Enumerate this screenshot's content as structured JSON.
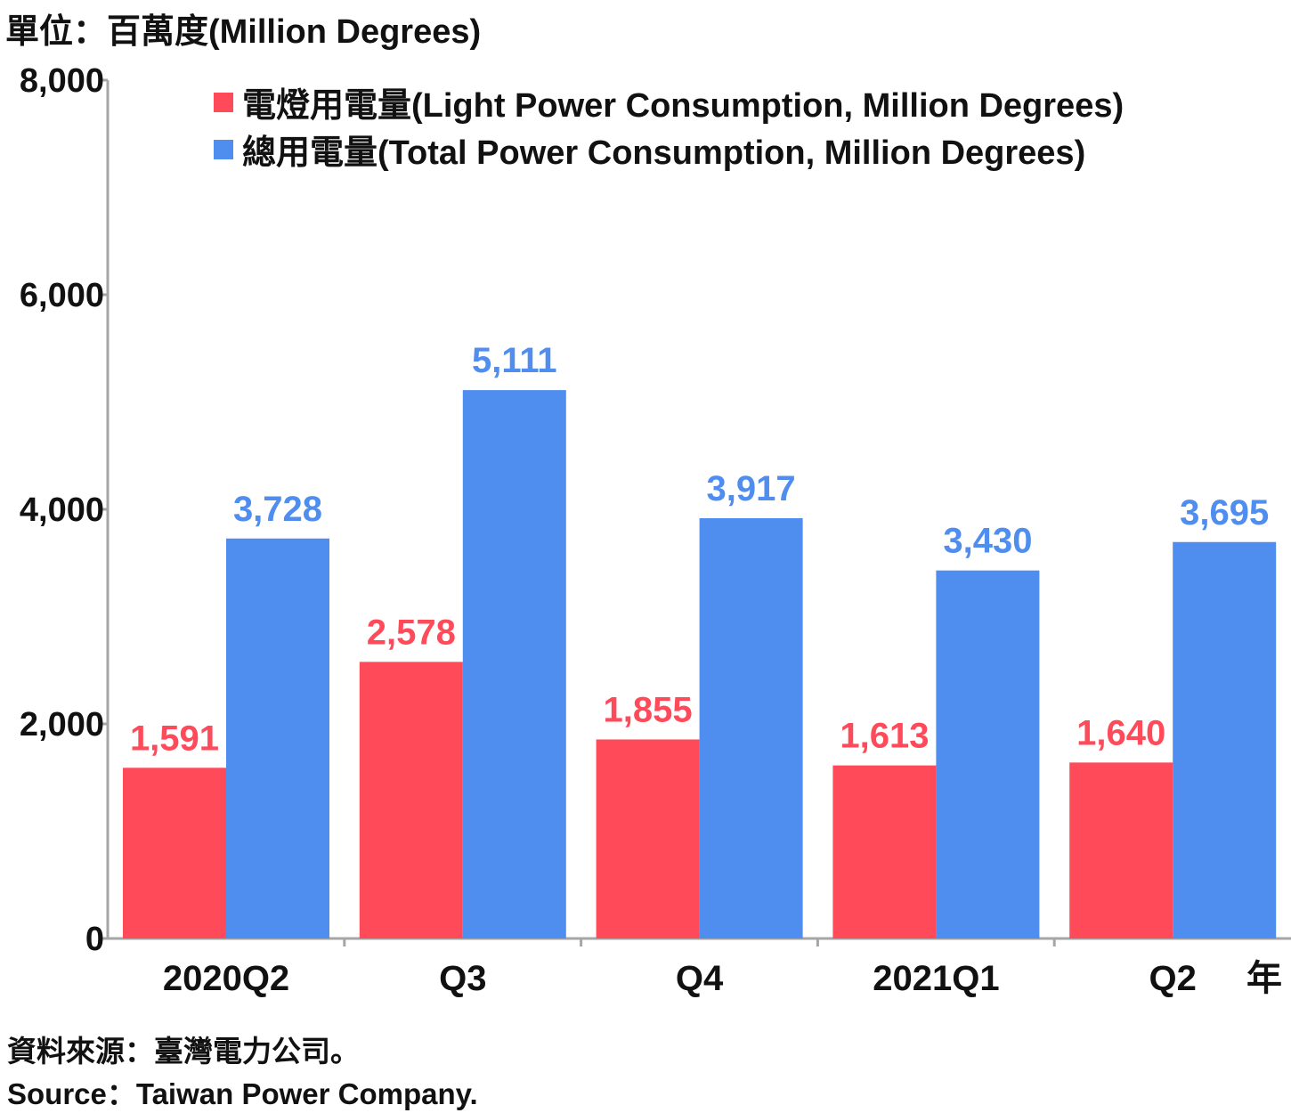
{
  "header": {
    "unit_label": "單位：百萬度(Million Degrees)"
  },
  "chart_data": {
    "type": "bar",
    "categories": [
      "2020Q2",
      "Q3",
      "Q4",
      "2021Q1",
      "Q2"
    ],
    "x_axis_suffix": "年",
    "series": [
      {
        "name": "電燈用電量(Light Power Consumption, Million Degrees)",
        "color": "#ff4a5a",
        "values": [
          1591,
          2578,
          1855,
          1613,
          1640
        ],
        "labels": [
          "1,591",
          "2,578",
          "1,855",
          "1,613",
          "1,640"
        ]
      },
      {
        "name": "總用電量(Total Power Consumption, Million Degrees)",
        "color": "#4f8def",
        "values": [
          3728,
          5111,
          3917,
          3430,
          3695
        ],
        "labels": [
          "3,728",
          "5,111",
          "3,917",
          "3,430",
          "3,695"
        ]
      }
    ],
    "ylim": [
      0,
      8000
    ],
    "yticks": [
      0,
      2000,
      4000,
      6000,
      8000
    ],
    "ytick_labels": [
      "0",
      "2,000",
      "4,000",
      "6,000",
      "8,000"
    ],
    "legend_position": "top",
    "grid": false
  },
  "footer": {
    "source_zh": "資料來源：臺灣電力公司。",
    "source_en": "Source：Taiwan Power Company."
  }
}
